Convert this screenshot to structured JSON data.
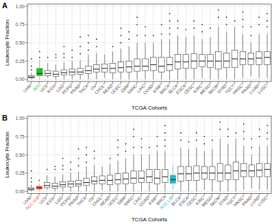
{
  "chart_data": [
    {
      "type": "box",
      "title": "A",
      "x_label": "TCGA Cohorts",
      "y_label": "Leukocyte Fraction",
      "grid": true,
      "ylim": [
        -0.03,
        1.03
      ],
      "yticks": [
        {
          "value": 0,
          "label": "0.00"
        },
        {
          "value": 0.25,
          "label": "0.25"
        },
        {
          "value": 0.5,
          "label": "0.50"
        },
        {
          "value": 0.75,
          "label": "0.75"
        },
        {
          "value": 1,
          "label": "1.00"
        }
      ],
      "categories": [
        "UVM*",
        "ACC",
        "UCS*",
        "KICH*",
        "LGG*",
        "PCPG*",
        "PRAD*",
        "THCA*",
        "OV*",
        "CHOL*",
        "READ*",
        "UCEC*",
        "GBM*",
        "SARC*",
        "LIHC*",
        "COAD*",
        "KIRP*",
        "BRCA*",
        "BLCA*",
        "ESCA*",
        "CESC*",
        "KIRC*",
        "MESO*",
        "SKCM*",
        "STAD*",
        "TGCT*",
        "HNSC*",
        "PAAD*",
        "LUAD*",
        "LUSC*"
      ],
      "colors": [
        "#ffffff",
        "#2db82d",
        "#ffffff",
        "#ffffff",
        "#ffffff",
        "#ffffff",
        "#ffffff",
        "#ffffff",
        "#ffffff",
        "#ffffff",
        "#ffffff",
        "#ffffff",
        "#ffffff",
        "#ffffff",
        "#ffffff",
        "#ffffff",
        "#ffffff",
        "#ffffff",
        "#ffffff",
        "#ffffff",
        "#ffffff",
        "#ffffff",
        "#ffffff",
        "#ffffff",
        "#ffffff",
        "#ffffff",
        "#ffffff",
        "#ffffff",
        "#ffffff",
        "#ffffff"
      ],
      "whisker_low": [
        0,
        0,
        0.02,
        0,
        0,
        0,
        0,
        0,
        0,
        0.02,
        0,
        0,
        0,
        0,
        0,
        0,
        0,
        0,
        0,
        0,
        0,
        0.02,
        0,
        0,
        0,
        0,
        0.02,
        0.04,
        0.02,
        0.02
      ],
      "q1": [
        0.02,
        0.05,
        0.05,
        0.04,
        0.06,
        0.06,
        0.07,
        0.08,
        0.1,
        0.1,
        0.09,
        0.1,
        0.1,
        0.11,
        0.12,
        0.12,
        0.1,
        0.12,
        0.14,
        0.15,
        0.15,
        0.17,
        0.16,
        0.14,
        0.16,
        0.16,
        0.2,
        0.2,
        0.2,
        0.2
      ],
      "median": [
        0.03,
        0.08,
        0.08,
        0.07,
        0.09,
        0.1,
        0.1,
        0.12,
        0.14,
        0.15,
        0.15,
        0.16,
        0.17,
        0.18,
        0.18,
        0.2,
        0.18,
        0.2,
        0.24,
        0.24,
        0.25,
        0.25,
        0.25,
        0.25,
        0.25,
        0.28,
        0.28,
        0.28,
        0.29,
        0.3
      ],
      "q3": [
        0.05,
        0.15,
        0.12,
        0.11,
        0.13,
        0.14,
        0.15,
        0.18,
        0.2,
        0.21,
        0.22,
        0.24,
        0.25,
        0.28,
        0.28,
        0.3,
        0.3,
        0.3,
        0.34,
        0.34,
        0.35,
        0.34,
        0.34,
        0.38,
        0.36,
        0.4,
        0.38,
        0.36,
        0.38,
        0.38
      ],
      "whisker_high": [
        0.09,
        0.27,
        0.22,
        0.2,
        0.23,
        0.25,
        0.26,
        0.34,
        0.36,
        0.34,
        0.38,
        0.42,
        0.45,
        0.5,
        0.5,
        0.5,
        0.55,
        0.55,
        0.6,
        0.58,
        0.6,
        0.55,
        0.58,
        0.72,
        0.65,
        0.72,
        0.62,
        0.5,
        0.62,
        0.62
      ],
      "outliers": [
        [
          0.13,
          0.18,
          0.28
        ],
        [
          0.3,
          0.38
        ],
        [
          0.3
        ],
        [
          0.3,
          0.34
        ],
        [
          0.3,
          0.35,
          0.45
        ],
        [
          0.3,
          0.4
        ],
        [
          0.35,
          0.45,
          0.58
        ],
        [
          0.4,
          0.5,
          0.6
        ],
        [
          0.45,
          0.55
        ],
        [],
        [
          0.45
        ],
        [
          0.5,
          0.6,
          0.7
        ],
        [
          0.55,
          0.65
        ],
        [
          0.6,
          0.75,
          0.85
        ],
        [
          0.6,
          0.72
        ],
        [
          0.6
        ],
        [
          0.62,
          0.75
        ],
        [
          0.62,
          0.7,
          0.8,
          0.9
        ],
        [
          0.7,
          0.8
        ],
        [
          0.68
        ],
        [
          0.7,
          0.8
        ],
        [
          0.65,
          0.75
        ],
        [
          0.7
        ],
        [
          0.85,
          0.95
        ],
        [
          0.75,
          0.85
        ],
        [
          0.8
        ],
        [
          0.72,
          0.82,
          0.92
        ],
        [
          0.6,
          0.72
        ],
        [
          0.75,
          0.85
        ],
        [
          0.72,
          0.8,
          0.9
        ]
      ]
    },
    {
      "type": "box",
      "title": "B",
      "x_label": "TCGA Cohorts",
      "y_label": "Leukocyte Fraction",
      "grid": true,
      "ylim": [
        -0.03,
        1.03
      ],
      "yticks": [
        {
          "value": 0,
          "label": "0.00"
        },
        {
          "value": 0.25,
          "label": "0.25"
        },
        {
          "value": 0.5,
          "label": "0.50"
        },
        {
          "value": 0.75,
          "label": "0.75"
        },
        {
          "value": 1,
          "label": "1.00"
        }
      ],
      "categories": [
        "UVM*",
        "ACC HSP",
        "UCS*",
        "KICH*",
        "LGG*",
        "PCPG*",
        "PRAD*",
        "THCA*",
        "OV*",
        "CHOL*",
        "READ*",
        "UCEC*",
        "GBM*",
        "SARC*",
        "LIHC*",
        "COAD*",
        "KIRP*",
        "BRCA",
        "ACC LSP",
        "BLCA*",
        "ESCA*",
        "CESC*",
        "KIRC*",
        "MESO*",
        "SKCM*",
        "STAD*",
        "TGCT*",
        "HNSC*",
        "PAAD*",
        "LUAD*",
        "LUSC*"
      ],
      "colors": [
        "#ffffff",
        "#e8604c",
        "#ffffff",
        "#ffffff",
        "#ffffff",
        "#ffffff",
        "#ffffff",
        "#ffffff",
        "#ffffff",
        "#ffffff",
        "#ffffff",
        "#ffffff",
        "#ffffff",
        "#ffffff",
        "#ffffff",
        "#ffffff",
        "#ffffff",
        "#ffffff",
        "#2bb5c8",
        "#ffffff",
        "#ffffff",
        "#ffffff",
        "#ffffff",
        "#ffffff",
        "#ffffff",
        "#ffffff",
        "#ffffff",
        "#ffffff",
        "#ffffff",
        "#ffffff",
        "#ffffff"
      ],
      "whisker_low": [
        0,
        0,
        0.02,
        0,
        0,
        0,
        0,
        0,
        0,
        0.02,
        0,
        0,
        0,
        0,
        0,
        0,
        0,
        0,
        0.02,
        0,
        0,
        0,
        0.02,
        0,
        0,
        0,
        0,
        0.02,
        0.04,
        0.02,
        0.02
      ],
      "q1": [
        0.02,
        0.03,
        0.05,
        0.04,
        0.06,
        0.06,
        0.07,
        0.08,
        0.1,
        0.1,
        0.09,
        0.1,
        0.1,
        0.11,
        0.12,
        0.12,
        0.1,
        0.12,
        0.11,
        0.14,
        0.15,
        0.15,
        0.17,
        0.16,
        0.14,
        0.16,
        0.16,
        0.2,
        0.2,
        0.2,
        0.2
      ],
      "median": [
        0.03,
        0.05,
        0.08,
        0.07,
        0.09,
        0.1,
        0.1,
        0.12,
        0.14,
        0.15,
        0.15,
        0.16,
        0.17,
        0.18,
        0.18,
        0.2,
        0.18,
        0.2,
        0.16,
        0.24,
        0.24,
        0.25,
        0.25,
        0.25,
        0.25,
        0.25,
        0.28,
        0.28,
        0.28,
        0.29,
        0.3
      ],
      "q3": [
        0.05,
        0.07,
        0.12,
        0.11,
        0.13,
        0.14,
        0.15,
        0.18,
        0.2,
        0.21,
        0.22,
        0.24,
        0.25,
        0.28,
        0.28,
        0.3,
        0.3,
        0.3,
        0.22,
        0.34,
        0.34,
        0.35,
        0.34,
        0.34,
        0.38,
        0.36,
        0.4,
        0.38,
        0.36,
        0.38,
        0.38
      ],
      "whisker_high": [
        0.09,
        0.1,
        0.22,
        0.2,
        0.23,
        0.25,
        0.26,
        0.34,
        0.36,
        0.34,
        0.38,
        0.42,
        0.45,
        0.5,
        0.5,
        0.5,
        0.55,
        0.55,
        0.36,
        0.6,
        0.58,
        0.6,
        0.55,
        0.58,
        0.72,
        0.65,
        0.72,
        0.62,
        0.5,
        0.62,
        0.62
      ],
      "outliers": [
        [
          0.13,
          0.18,
          0.28
        ],
        [
          0.15
        ],
        [
          0.3
        ],
        [
          0.3,
          0.34
        ],
        [
          0.3,
          0.35,
          0.45
        ],
        [
          0.3,
          0.4
        ],
        [
          0.35,
          0.45,
          0.58
        ],
        [
          0.4,
          0.5,
          0.6
        ],
        [
          0.45,
          0.55
        ],
        [],
        [
          0.45
        ],
        [
          0.5,
          0.6,
          0.7
        ],
        [
          0.55,
          0.65
        ],
        [
          0.6,
          0.75,
          0.85
        ],
        [
          0.6,
          0.72
        ],
        [
          0.6
        ],
        [
          0.62,
          0.75
        ],
        [
          0.62,
          0.7,
          0.8,
          0.9
        ],
        [],
        [
          0.7,
          0.8
        ],
        [
          0.68
        ],
        [
          0.7,
          0.8
        ],
        [
          0.65,
          0.75
        ],
        [
          0.7
        ],
        [
          0.85,
          0.95
        ],
        [
          0.75,
          0.85
        ],
        [
          0.8
        ],
        [
          0.72,
          0.82,
          0.92
        ],
        [
          0.6,
          0.72
        ],
        [
          0.75,
          0.85
        ],
        [
          0.72,
          0.8,
          0.9
        ]
      ]
    }
  ]
}
